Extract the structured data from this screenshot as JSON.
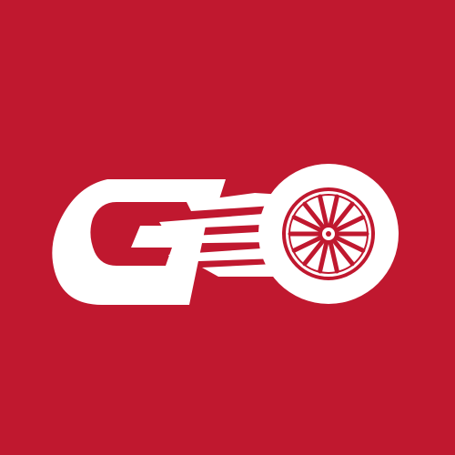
{
  "logo": {
    "wordmark": "GO",
    "background_color": "#c0182f",
    "foreground_color": "#ffffff",
    "icons": {
      "letter": "letter-g-icon",
      "motion": "speed-lines-icon",
      "wheel": "wheel-icon"
    }
  }
}
